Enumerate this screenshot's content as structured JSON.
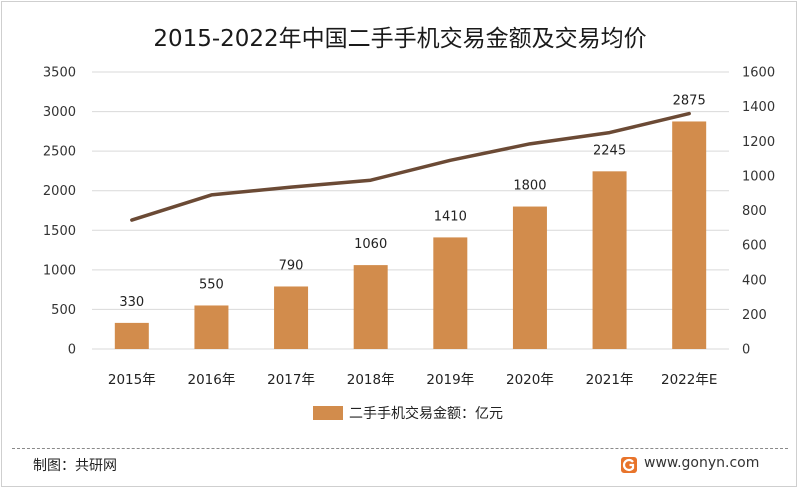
{
  "chart_data": {
    "type": "bar",
    "title": "2015-2022年中国二手手机交易金额及交易均价",
    "categories": [
      "2015年",
      "2016年",
      "2017年",
      "2018年",
      "2019年",
      "2020年",
      "2021年",
      "2022年E"
    ],
    "series": [
      {
        "name": "二手手机交易金额：亿元",
        "type": "bar",
        "axis": "left",
        "values": [
          330,
          550,
          790,
          1060,
          1410,
          1800,
          2245,
          2875
        ],
        "color": "#d28c4c"
      },
      {
        "type": "line",
        "axis": "right",
        "values": [
          745,
          890,
          935,
          975,
          1090,
          1185,
          1250,
          1360
        ],
        "color": "#6b4a35"
      }
    ],
    "ylim": [
      0,
      3500
    ],
    "yticks": [
      "0",
      "500",
      "1000",
      "1500",
      "2000",
      "2500",
      "3000",
      "3500"
    ],
    "y2lim": [
      0,
      1600
    ],
    "y2ticks": [
      "0",
      "200",
      "400",
      "600",
      "800",
      "1000",
      "1200",
      "1400",
      "1600"
    ],
    "grid": true,
    "legend_position": "bottom"
  },
  "footer": {
    "credit": "制图：共研网",
    "website": "www.gonyn.com",
    "logo_color": "#e8742b"
  }
}
